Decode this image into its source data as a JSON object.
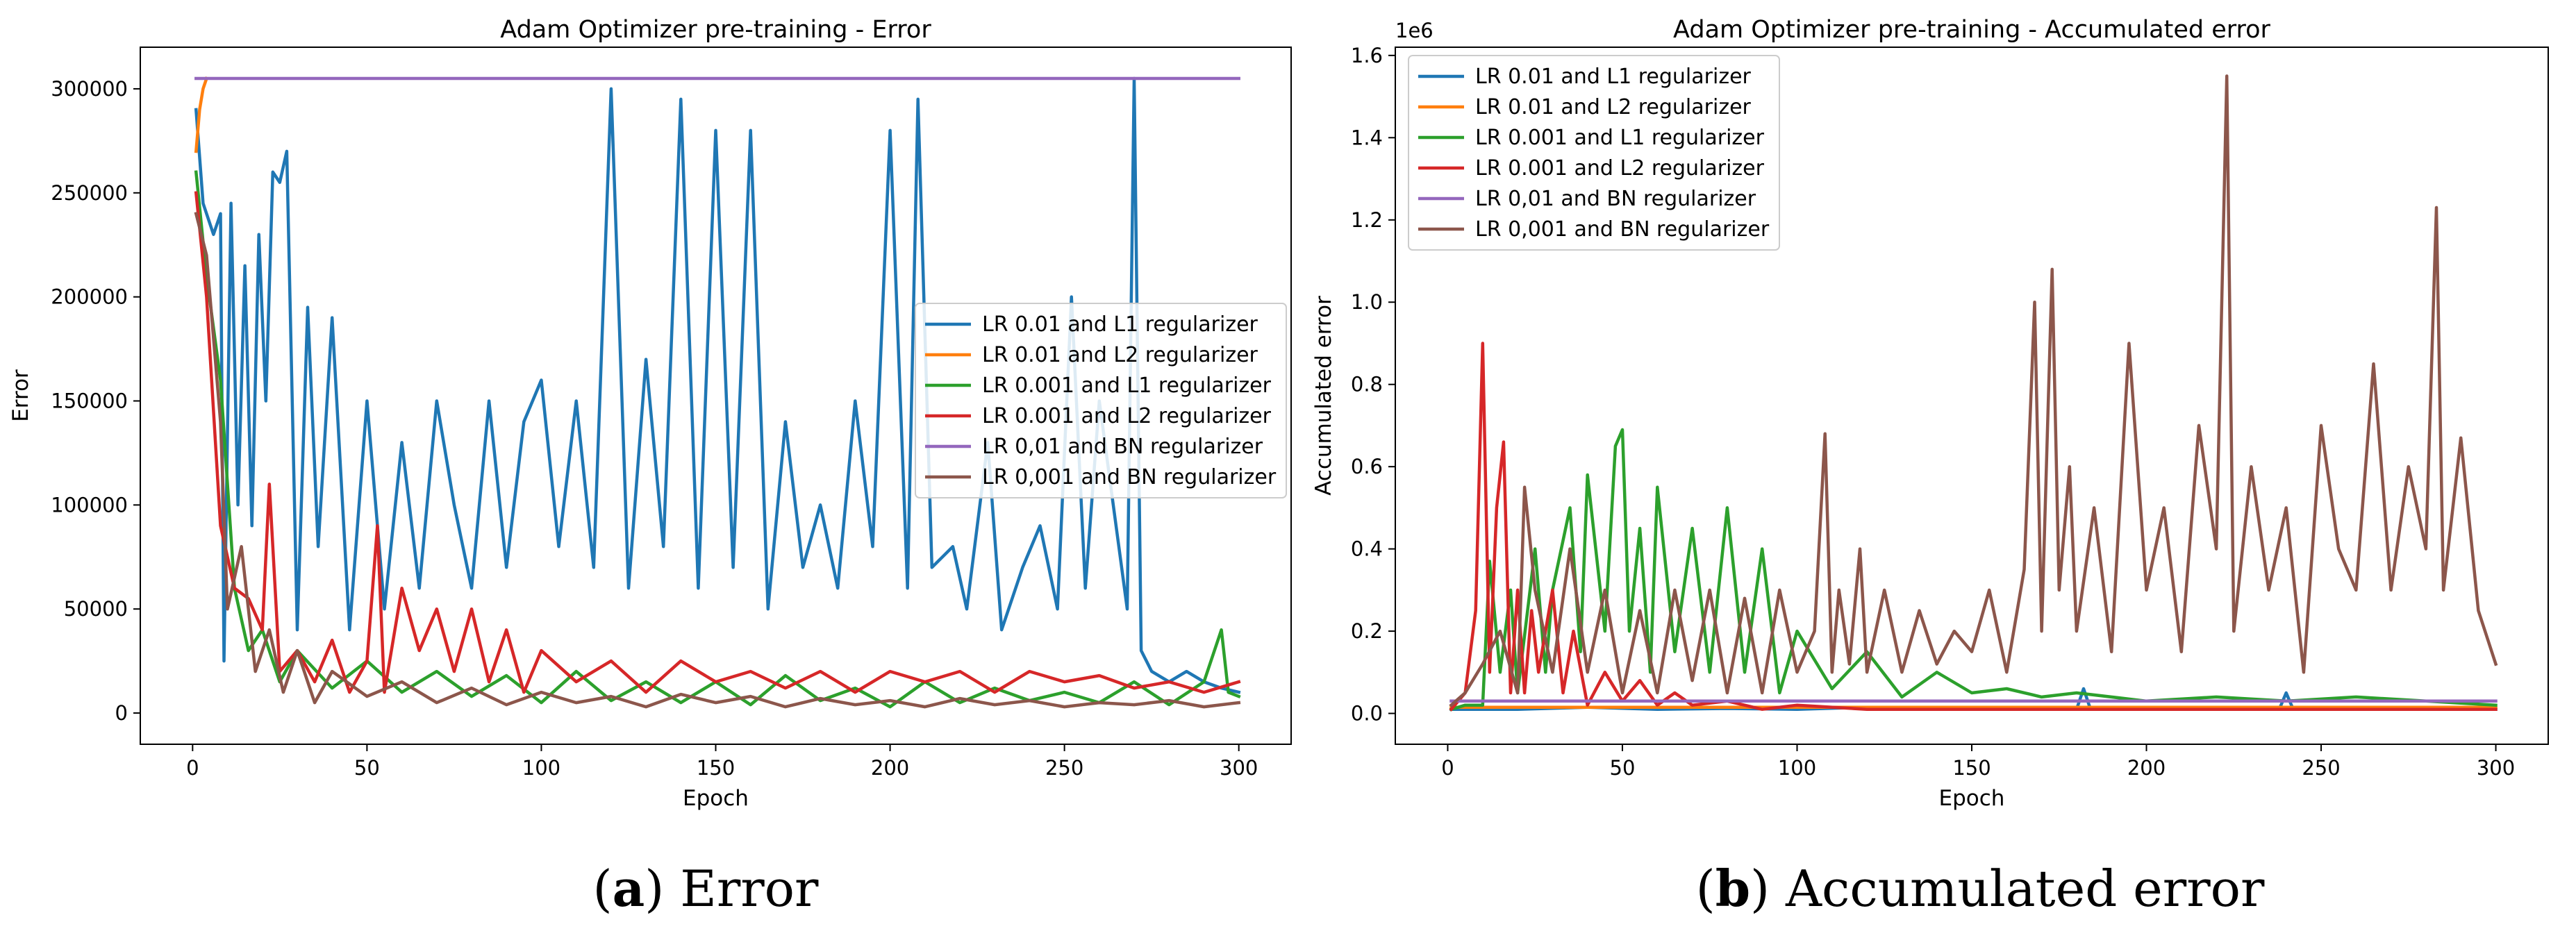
{
  "chart_data": [
    {
      "type": "line",
      "title": "Adam Optimizer pre-training - Error",
      "xlabel": "Epoch",
      "ylabel": "Error",
      "xlim": [
        -15,
        315
      ],
      "ylim": [
        -15000,
        320000
      ],
      "xticks": [
        "0",
        "50",
        "100",
        "150",
        "200",
        "250",
        "300"
      ],
      "xtick_values": [
        0,
        50,
        100,
        150,
        200,
        250,
        300
      ],
      "yticks": [
        "0",
        "50000",
        "100000",
        "150000",
        "200000",
        "250000",
        "300000"
      ],
      "ytick_values": [
        0,
        50000,
        100000,
        150000,
        200000,
        250000,
        300000
      ],
      "offset_label": "",
      "legend_position": "center-right",
      "caption_letter": "a",
      "caption_text": "Error",
      "series": [
        {
          "name": "LR 0.01 and L1 regularizer",
          "color": "#1f77b4",
          "x": [
            1,
            3,
            6,
            8,
            9,
            11,
            13,
            15,
            17,
            19,
            21,
            23,
            25,
            27,
            30,
            33,
            36,
            40,
            45,
            50,
            55,
            60,
            65,
            70,
            75,
            80,
            85,
            90,
            95,
            100,
            105,
            110,
            115,
            120,
            125,
            130,
            135,
            140,
            145,
            150,
            155,
            160,
            165,
            170,
            175,
            180,
            185,
            190,
            195,
            200,
            205,
            208,
            212,
            218,
            222,
            228,
            232,
            238,
            243,
            248,
            252,
            256,
            260,
            264,
            268,
            270,
            272,
            275,
            280,
            285,
            290,
            295,
            300
          ],
          "y": [
            290000,
            245000,
            230000,
            240000,
            25000,
            245000,
            100000,
            215000,
            90000,
            230000,
            150000,
            260000,
            255000,
            270000,
            40000,
            195000,
            80000,
            190000,
            40000,
            150000,
            50000,
            130000,
            60000,
            150000,
            100000,
            60000,
            150000,
            70000,
            140000,
            160000,
            80000,
            150000,
            70000,
            300000,
            60000,
            170000,
            80000,
            295000,
            60000,
            280000,
            70000,
            280000,
            50000,
            140000,
            70000,
            100000,
            60000,
            150000,
            80000,
            280000,
            60000,
            295000,
            70000,
            80000,
            50000,
            130000,
            40000,
            70000,
            90000,
            50000,
            200000,
            60000,
            150000,
            100000,
            50000,
            305000,
            30000,
            20000,
            15000,
            20000,
            15000,
            12000,
            10000
          ]
        },
        {
          "name": "LR 0.01 and L2 regularizer",
          "color": "#ff7f0e",
          "x": [
            1,
            2,
            3,
            4
          ],
          "y": [
            270000,
            290000,
            300000,
            305000
          ]
        },
        {
          "name": "LR 0.001 and L1 regularizer",
          "color": "#2ca02c",
          "x": [
            1,
            4,
            8,
            12,
            16,
            20,
            25,
            30,
            40,
            50,
            60,
            70,
            80,
            90,
            100,
            110,
            120,
            130,
            140,
            150,
            160,
            170,
            180,
            190,
            200,
            210,
            220,
            230,
            240,
            250,
            260,
            270,
            280,
            290,
            295,
            297,
            300
          ],
          "y": [
            260000,
            210000,
            160000,
            60000,
            30000,
            40000,
            15000,
            30000,
            12000,
            25000,
            10000,
            20000,
            8000,
            18000,
            5000,
            20000,
            6000,
            15000,
            5000,
            15000,
            4000,
            18000,
            6000,
            12000,
            3000,
            15000,
            5000,
            12000,
            6000,
            10000,
            5000,
            15000,
            4000,
            15000,
            40000,
            10000,
            8000
          ]
        },
        {
          "name": "LR 0.001 and L2 regularizer",
          "color": "#d62728",
          "x": [
            1,
            4,
            8,
            12,
            16,
            20,
            22,
            25,
            30,
            35,
            40,
            45,
            50,
            53,
            55,
            60,
            65,
            70,
            75,
            80,
            85,
            90,
            95,
            100,
            110,
            120,
            130,
            140,
            150,
            160,
            170,
            180,
            190,
            200,
            210,
            220,
            230,
            240,
            250,
            260,
            270,
            280,
            290,
            300
          ],
          "y": [
            250000,
            200000,
            90000,
            60000,
            55000,
            40000,
            110000,
            20000,
            30000,
            15000,
            35000,
            10000,
            25000,
            90000,
            10000,
            60000,
            30000,
            50000,
            20000,
            50000,
            15000,
            40000,
            10000,
            30000,
            15000,
            25000,
            10000,
            25000,
            15000,
            20000,
            12000,
            20000,
            10000,
            20000,
            15000,
            20000,
            10000,
            20000,
            15000,
            18000,
            12000,
            15000,
            10000,
            15000
          ]
        },
        {
          "name": "LR 0,01 and BN regularizer",
          "color": "#9467bd",
          "x": [
            1,
            300
          ],
          "y": [
            305000,
            305000
          ]
        },
        {
          "name": "LR 0,001 and BN regularizer",
          "color": "#8c564b",
          "x": [
            1,
            4,
            8,
            10,
            14,
            18,
            22,
            26,
            30,
            35,
            40,
            50,
            60,
            70,
            80,
            90,
            100,
            110,
            120,
            130,
            140,
            150,
            160,
            170,
            180,
            190,
            200,
            210,
            220,
            230,
            240,
            250,
            260,
            270,
            280,
            290,
            300
          ],
          "y": [
            240000,
            220000,
            140000,
            50000,
            80000,
            20000,
            40000,
            10000,
            30000,
            5000,
            20000,
            8000,
            15000,
            5000,
            12000,
            4000,
            10000,
            5000,
            8000,
            3000,
            9000,
            5000,
            8000,
            3000,
            7000,
            4000,
            6000,
            3000,
            7000,
            4000,
            6000,
            3000,
            5000,
            4000,
            6000,
            3000,
            5000
          ]
        }
      ]
    },
    {
      "type": "line",
      "title": "Adam Optimizer pre-training - Accumulated error",
      "xlabel": "Epoch",
      "ylabel": "Accumulated error",
      "xlim": [
        -15,
        315
      ],
      "ylim": [
        -0.075,
        1.62
      ],
      "xticks": [
        "0",
        "50",
        "100",
        "150",
        "200",
        "250",
        "300"
      ],
      "xtick_values": [
        0,
        50,
        100,
        150,
        200,
        250,
        300
      ],
      "yticks": [
        "0.0",
        "0.2",
        "0.4",
        "0.6",
        "0.8",
        "1.0",
        "1.2",
        "1.4",
        "1.6"
      ],
      "ytick_values": [
        0,
        0.2,
        0.4,
        0.6,
        0.8,
        1.0,
        1.2,
        1.4,
        1.6
      ],
      "offset_label": "1e6",
      "legend_position": "upper-left",
      "caption_letter": "b",
      "caption_text": "Accumulated error",
      "series": [
        {
          "name": "LR 0.01 and L1 regularizer",
          "color": "#1f77b4",
          "x": [
            1,
            20,
            40,
            60,
            80,
            100,
            120,
            140,
            160,
            180,
            182,
            184,
            200,
            220,
            238,
            240,
            242,
            260,
            280,
            300
          ],
          "y": [
            0.01,
            0.01,
            0.015,
            0.01,
            0.012,
            0.01,
            0.015,
            0.01,
            0.012,
            0.01,
            0.06,
            0.01,
            0.01,
            0.012,
            0.01,
            0.05,
            0.01,
            0.01,
            0.01,
            0.01
          ]
        },
        {
          "name": "LR 0.01 and L2 regularizer",
          "color": "#ff7f0e",
          "x": [
            1,
            300
          ],
          "y": [
            0.015,
            0.015
          ]
        },
        {
          "name": "LR 0.001 and L1 regularizer",
          "color": "#2ca02c",
          "x": [
            1,
            5,
            10,
            12,
            15,
            18,
            20,
            25,
            28,
            30,
            35,
            38,
            40,
            45,
            48,
            50,
            52,
            55,
            58,
            60,
            65,
            70,
            75,
            80,
            85,
            90,
            95,
            100,
            110,
            120,
            130,
            140,
            150,
            160,
            170,
            180,
            200,
            220,
            240,
            260,
            280,
            300
          ],
          "y": [
            0.01,
            0.02,
            0.02,
            0.37,
            0.1,
            0.3,
            0.05,
            0.4,
            0.1,
            0.3,
            0.5,
            0.15,
            0.58,
            0.2,
            0.65,
            0.69,
            0.2,
            0.45,
            0.1,
            0.55,
            0.15,
            0.45,
            0.1,
            0.5,
            0.1,
            0.4,
            0.05,
            0.2,
            0.06,
            0.15,
            0.04,
            0.1,
            0.05,
            0.06,
            0.04,
            0.05,
            0.03,
            0.04,
            0.03,
            0.04,
            0.03,
            0.02
          ]
        },
        {
          "name": "LR 0.001 and L2 regularizer",
          "color": "#d62728",
          "x": [
            1,
            5,
            8,
            10,
            12,
            14,
            16,
            18,
            20,
            22,
            24,
            26,
            28,
            30,
            33,
            36,
            40,
            45,
            50,
            55,
            60,
            65,
            70,
            80,
            90,
            100,
            120,
            150,
            200,
            250,
            300
          ],
          "y": [
            0.01,
            0.05,
            0.25,
            0.9,
            0.1,
            0.5,
            0.66,
            0.05,
            0.3,
            0.05,
            0.25,
            0.1,
            0.2,
            0.3,
            0.05,
            0.2,
            0.02,
            0.1,
            0.03,
            0.08,
            0.02,
            0.05,
            0.02,
            0.03,
            0.01,
            0.02,
            0.01,
            0.01,
            0.01,
            0.01,
            0.01
          ]
        },
        {
          "name": "LR 0,01 and BN regularizer",
          "color": "#9467bd",
          "x": [
            1,
            300
          ],
          "y": [
            0.03,
            0.03
          ]
        },
        {
          "name": "LR 0,001 and BN regularizer",
          "color": "#8c564b",
          "x": [
            1,
            5,
            10,
            15,
            20,
            22,
            25,
            30,
            35,
            40,
            45,
            50,
            55,
            60,
            65,
            70,
            75,
            80,
            85,
            90,
            95,
            100,
            105,
            108,
            110,
            112,
            115,
            118,
            120,
            125,
            130,
            135,
            140,
            145,
            150,
            155,
            160,
            165,
            168,
            170,
            173,
            175,
            178,
            180,
            185,
            190,
            195,
            200,
            205,
            210,
            215,
            220,
            223,
            225,
            230,
            235,
            240,
            245,
            250,
            255,
            260,
            265,
            270,
            275,
            280,
            283,
            285,
            290,
            295,
            300
          ],
          "y": [
            0.02,
            0.05,
            0.12,
            0.2,
            0.05,
            0.55,
            0.3,
            0.1,
            0.4,
            0.1,
            0.3,
            0.05,
            0.25,
            0.05,
            0.3,
            0.08,
            0.3,
            0.05,
            0.28,
            0.05,
            0.3,
            0.1,
            0.2,
            0.68,
            0.1,
            0.3,
            0.12,
            0.4,
            0.1,
            0.3,
            0.1,
            0.25,
            0.12,
            0.2,
            0.15,
            0.3,
            0.1,
            0.35,
            1.0,
            0.2,
            1.08,
            0.3,
            0.6,
            0.2,
            0.5,
            0.15,
            0.9,
            0.3,
            0.5,
            0.15,
            0.7,
            0.4,
            1.55,
            0.2,
            0.6,
            0.3,
            0.5,
            0.1,
            0.7,
            0.4,
            0.3,
            0.85,
            0.3,
            0.6,
            0.4,
            1.23,
            0.3,
            0.67,
            0.25,
            0.12
          ]
        }
      ]
    }
  ]
}
